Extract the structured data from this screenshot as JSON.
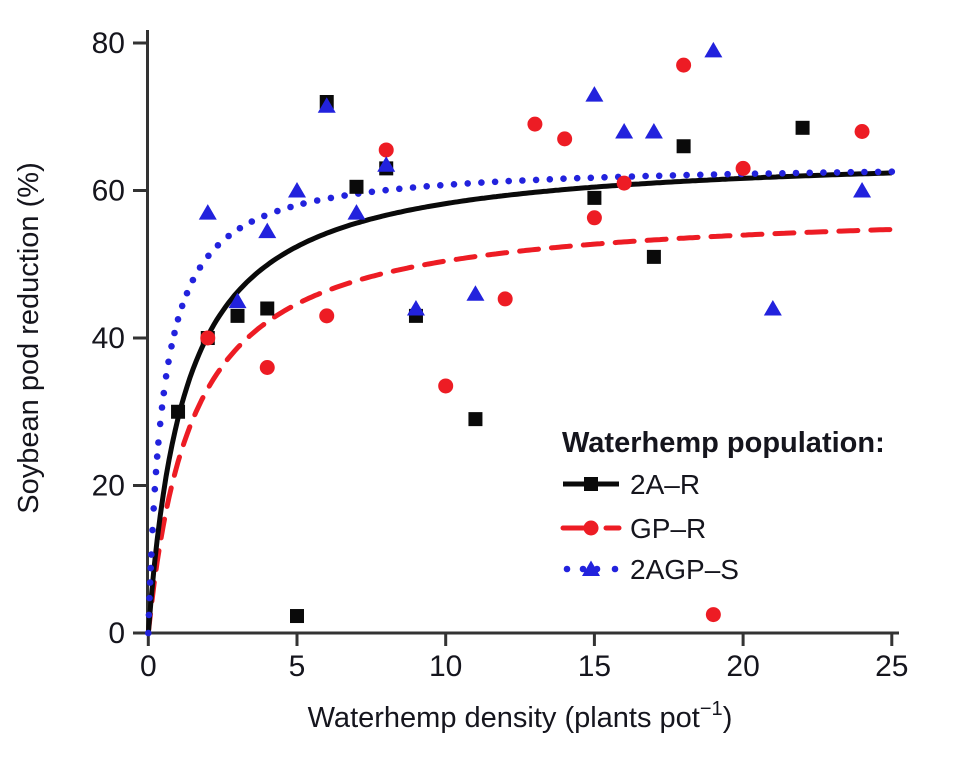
{
  "chart_data": {
    "type": "scatter",
    "title": "",
    "xlabel": "Waterhemp density (plants pot⁻¹)",
    "xlabel_parts": {
      "base": "Waterhemp density (plants pot",
      "sup": "−1",
      "end": ")"
    },
    "ylabel": "Soybean pod reduction (%)",
    "xlim": [
      0,
      25
    ],
    "ylim": [
      0,
      80
    ],
    "x_ticks": [
      0,
      5,
      10,
      15,
      20,
      25
    ],
    "y_ticks": [
      0,
      20,
      40,
      60,
      80
    ],
    "grid": false,
    "legend": {
      "title": "Waterhemp population:",
      "position": "lower right"
    },
    "axis_color": "#333333",
    "series": [
      {
        "label": "2A–R",
        "color": "#0a0a0a",
        "marker": "square",
        "line": "solid",
        "points": [
          [
            1,
            30
          ],
          [
            2,
            40
          ],
          [
            3,
            43
          ],
          [
            4,
            44
          ],
          [
            5,
            2.3
          ],
          [
            6,
            72
          ],
          [
            7,
            60.5
          ],
          [
            8,
            63
          ],
          [
            9,
            43
          ],
          [
            11,
            29
          ],
          [
            15,
            59
          ],
          [
            17,
            51
          ],
          [
            18,
            66
          ],
          [
            22,
            68.5
          ]
        ],
        "fit": {
          "model": "y = Vmax*x/(K+x)",
          "vmax": 65.5,
          "k": 1.25
        }
      },
      {
        "label": "GP–R",
        "color": "#ed1c24",
        "marker": "circle",
        "line": "dashed",
        "points": [
          [
            2,
            40
          ],
          [
            4,
            36
          ],
          [
            6,
            43
          ],
          [
            8,
            65.5
          ],
          [
            10,
            33.5
          ],
          [
            12,
            45.3
          ],
          [
            13,
            69
          ],
          [
            14,
            67
          ],
          [
            15,
            56.3
          ],
          [
            16,
            61
          ],
          [
            18,
            77
          ],
          [
            19,
            2.5
          ],
          [
            20,
            63
          ],
          [
            24,
            68
          ]
        ],
        "fit": {
          "model": "y = Vmax*x/(K+x)",
          "vmax": 58,
          "k": 1.5
        }
      },
      {
        "label": "2AGP–S",
        "color": "#2222dd",
        "marker": "triangle",
        "line": "dotted",
        "points": [
          [
            2,
            57
          ],
          [
            3,
            45
          ],
          [
            4,
            54.5
          ],
          [
            5,
            60
          ],
          [
            6,
            71.5
          ],
          [
            7,
            57
          ],
          [
            8,
            63.5
          ],
          [
            9,
            44
          ],
          [
            11,
            46
          ],
          [
            15,
            73
          ],
          [
            16,
            68
          ],
          [
            17,
            68
          ],
          [
            19,
            79
          ],
          [
            21,
            44
          ],
          [
            24,
            60
          ]
        ],
        "fit": {
          "model": "y = Vmax*x/(K+x)",
          "vmax": 63.8,
          "k": 0.5
        }
      }
    ]
  }
}
